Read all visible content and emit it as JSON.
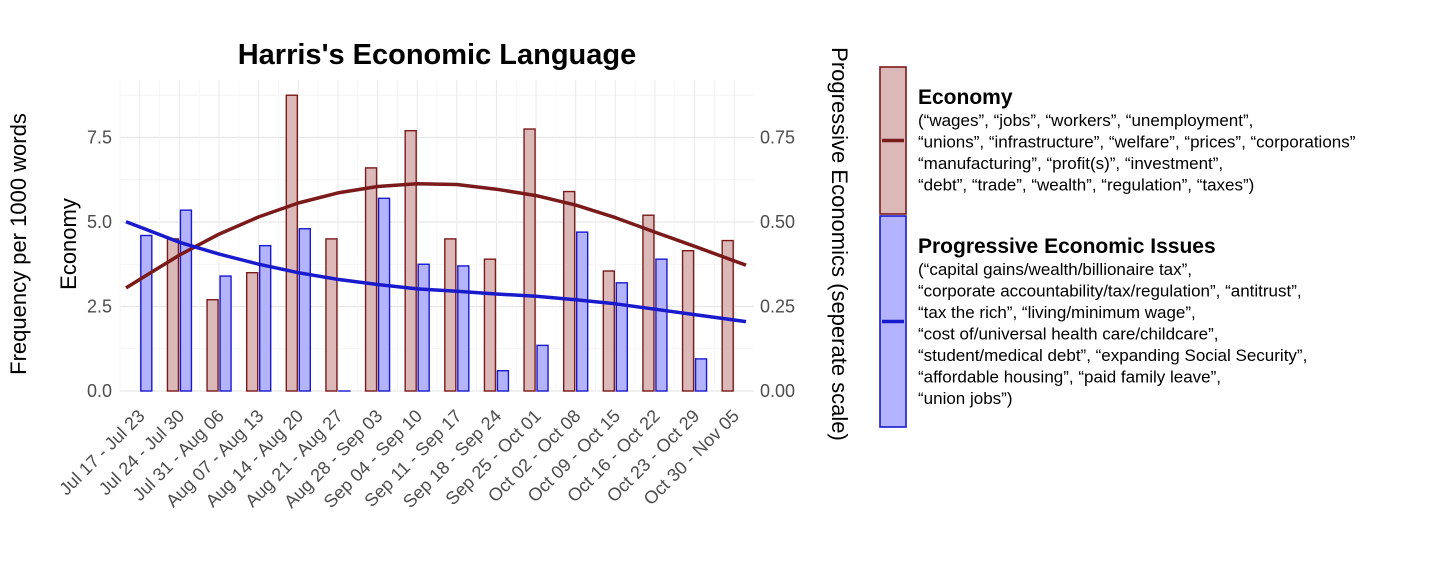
{
  "chart_data": {
    "type": "bar",
    "title": "Harris's Economic Language",
    "ylabel_outer": "Frequency per 1000 words",
    "ylabel_left": "Economy",
    "ylabel_right": "Progressive Economics (seperate scale)",
    "categories": [
      "Jul 17 - Jul 23",
      "Jul 24 - Jul 30",
      "Jul 31 - Aug 06",
      "Aug 07 - Aug 13",
      "Aug 14 - Aug 20",
      "Aug 21 - Aug 27",
      "Aug 28 - Sep 03",
      "Sep 04 - Sep 10",
      "Sep 11 - Sep 17",
      "Sep 18 - Sep 24",
      "Sep 25 - Oct 01",
      "Oct 02 - Oct 08",
      "Oct 09 - Oct 15",
      "Oct 16 - Oct 22",
      "Oct 23 - Oct 29",
      "Oct 30 - Nov 05"
    ],
    "ylim_left": [
      0,
      9.2
    ],
    "ylim_right": [
      0,
      0.92
    ],
    "yticks_left": [
      "0.0",
      "2.5",
      "5.0",
      "7.5"
    ],
    "yticks_right": [
      "0.00",
      "0.25",
      "0.50",
      "0.75"
    ],
    "grid": true,
    "legend_position": "right",
    "series": [
      {
        "name": "Economy",
        "axis": "left",
        "color": "#7b1a1a",
        "fill": "#dbb9b9",
        "values": [
          null,
          4.5,
          2.7,
          3.5,
          8.75,
          4.5,
          6.6,
          7.7,
          4.5,
          3.9,
          7.75,
          5.9,
          3.55,
          5.2,
          4.15,
          4.45
        ],
        "trend": [
          3.3,
          4.02,
          4.64,
          5.15,
          5.56,
          5.86,
          6.05,
          6.13,
          6.11,
          5.97,
          5.78,
          5.5,
          5.13,
          4.7,
          4.28,
          3.85
        ]
      },
      {
        "name": "Progressive Economic Issues",
        "axis": "right",
        "color": "#1a1acd",
        "fill": "#b3b3ff",
        "values": [
          0.46,
          0.535,
          0.34,
          0.43,
          0.48,
          0.0,
          0.57,
          0.375,
          0.37,
          0.06,
          0.135,
          0.47,
          0.32,
          0.39,
          0.095,
          null
        ],
        "trend": [
          0.485,
          0.44,
          0.405,
          0.375,
          0.35,
          0.33,
          0.315,
          0.302,
          0.295,
          0.287,
          0.28,
          0.27,
          0.258,
          0.242,
          0.226,
          0.21
        ]
      }
    ]
  },
  "legend": [
    {
      "title": "Economy",
      "lines": [
        "(“wages”, “jobs”, “workers”, “unemployment”,",
        "“unions”, “infrastructure”, “welfare”, “prices”, “corporations”",
        "“manufacturing”, “profit(s)”, “investment”,",
        "“debt”, “trade”, “wealth”, “regulation”, “taxes”)"
      ]
    },
    {
      "title": "Progressive Economic Issues",
      "lines": [
        "(“capital gains/wealth/billionaire tax”,",
        "“corporate accountability/tax/regulation”, “antitrust”,",
        "“tax the rich”, “living/minimum wage”,",
        "“cost of/universal health care/childcare”,",
        "“student/medical debt”, “expanding Social Security”,",
        "“affordable housing”, “paid family leave”,",
        "“union jobs”)"
      ]
    }
  ]
}
